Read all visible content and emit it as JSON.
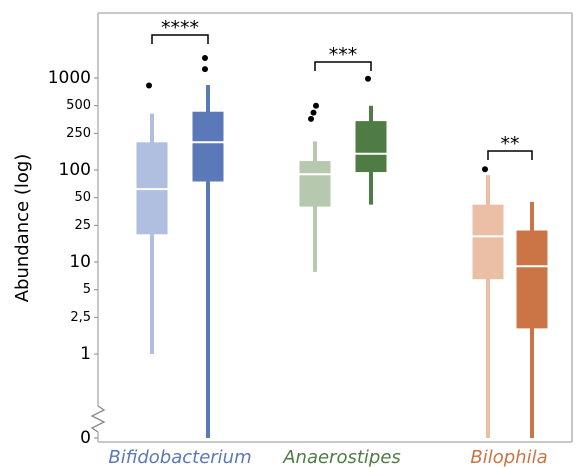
{
  "chart_data": {
    "type": "boxplot",
    "ylabel": "Abundance (log)",
    "yscale": "log",
    "y_ticks": [
      {
        "value": 1000,
        "label": "1000"
      },
      {
        "value": 500,
        "label": "500"
      },
      {
        "value": 250,
        "label": "250"
      },
      {
        "value": 100,
        "label": "100"
      },
      {
        "value": 50,
        "label": "50"
      },
      {
        "value": 25,
        "label": "25"
      },
      {
        "value": 10,
        "label": "10"
      },
      {
        "value": 5,
        "label": "5"
      },
      {
        "value": 2.5,
        "label": "2,5"
      },
      {
        "value": 1,
        "label": "1"
      },
      {
        "value": 0,
        "label": "0"
      }
    ],
    "axis_break": true,
    "groups": [
      {
        "category": "Bifidobacterium",
        "label_color": "#5b78b8",
        "boxes": [
          {
            "color": "#b0bfe0",
            "whisker_low": 1,
            "q1": 20,
            "median": 62,
            "q3": 200,
            "whisker_high": 410,
            "outliers": [
              830
            ]
          },
          {
            "color": "#5b78b8",
            "whisker_low": 0,
            "q1": 75,
            "median": 200,
            "q3": 430,
            "whisker_high": 840,
            "outliers": [
              1250,
              1650
            ]
          }
        ],
        "significance": "****"
      },
      {
        "category": "Anaerostipes",
        "label_color": "#4f7b45",
        "boxes": [
          {
            "color": "#b6c8ae",
            "whisker_low": 7.8,
            "q1": 40,
            "median": 90,
            "q3": 125,
            "whisker_high": 205,
            "outliers": [
              360,
              420,
              500
            ]
          },
          {
            "color": "#4f7b45",
            "whisker_low": 42,
            "q1": 95,
            "median": 150,
            "q3": 340,
            "whisker_high": 500,
            "outliers": [
              980
            ]
          }
        ],
        "significance": "***"
      },
      {
        "category": "Bilophila",
        "label_color": "#cb7445",
        "boxes": [
          {
            "color": "#eabfa6",
            "whisker_low": 0,
            "q1": 6.5,
            "median": 19,
            "q3": 42,
            "whisker_high": 88,
            "outliers": [
              102
            ]
          },
          {
            "color": "#cb7445",
            "whisker_low": 0,
            "q1": 1.9,
            "median": 9,
            "q3": 22,
            "whisker_high": 45,
            "outliers": []
          }
        ],
        "significance": "**"
      }
    ]
  }
}
